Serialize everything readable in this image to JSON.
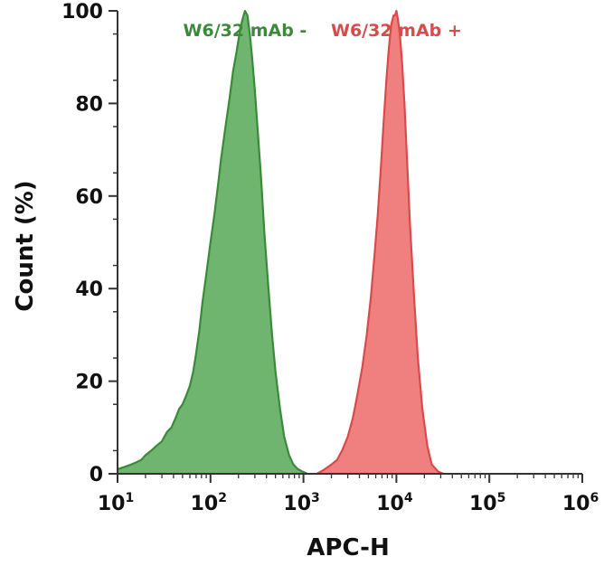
{
  "chart_data": {
    "type": "area",
    "title": "",
    "xlabel": "APC-H",
    "ylabel": "Count (%)",
    "x_scale": "log",
    "xlim": [
      10,
      1000000
    ],
    "ylim": [
      0,
      100
    ],
    "x_ticks": [
      {
        "value": 10,
        "base": "10",
        "exp": "1"
      },
      {
        "value": 100,
        "base": "10",
        "exp": "2"
      },
      {
        "value": 1000,
        "base": "10",
        "exp": "3"
      },
      {
        "value": 10000,
        "base": "10",
        "exp": "4"
      },
      {
        "value": 100000,
        "base": "10",
        "exp": "5"
      },
      {
        "value": 1000000,
        "base": "10",
        "exp": "6"
      }
    ],
    "y_ticks": [
      "0",
      "20",
      "40",
      "60",
      "80",
      "100"
    ],
    "grid": false,
    "series": [
      {
        "name": "W6/32 mAb -",
        "color": "#3a8a3a",
        "fill": "#6fb56f",
        "x": [
          10,
          12,
          14,
          16,
          18,
          20,
          23,
          26,
          30,
          34,
          38,
          42,
          46,
          50,
          55,
          60,
          65,
          70,
          76,
          82,
          90,
          100,
          110,
          120,
          130,
          145,
          160,
          175,
          190,
          205,
          220,
          235,
          250,
          265,
          280,
          300,
          320,
          350,
          380,
          420,
          460,
          500,
          560,
          620,
          700,
          780,
          870,
          970,
          1100
        ],
        "y": [
          1,
          1.5,
          2,
          2.5,
          3,
          4,
          5,
          6,
          7,
          9,
          10,
          12,
          14,
          15,
          17,
          19,
          22,
          26,
          31,
          37,
          43,
          50,
          56,
          62,
          68,
          75,
          81,
          87,
          91,
          95,
          98,
          100,
          99,
          95,
          90,
          83,
          75,
          64,
          52,
          40,
          30,
          22,
          14,
          8,
          4,
          2,
          1,
          0.5,
          0
        ]
      },
      {
        "name": "W6/32 mAb +",
        "color": "#d94a4a",
        "fill": "#f08080",
        "x": [
          1400,
          1700,
          2000,
          2300,
          2600,
          3000,
          3400,
          3800,
          4300,
          4800,
          5300,
          5800,
          6300,
          6800,
          7300,
          7800,
          8300,
          8800,
          9300,
          9700,
          10000,
          10400,
          10900,
          11500,
          12200,
          13000,
          14000,
          15500,
          17000,
          19000,
          21500,
          24000,
          28000,
          32000
        ],
        "y": [
          0,
          1,
          2,
          3,
          5,
          8,
          12,
          17,
          23,
          30,
          38,
          47,
          56,
          66,
          76,
          85,
          92,
          97,
          99,
          99,
          100,
          98,
          95,
          89,
          80,
          68,
          54,
          38,
          25,
          14,
          6,
          2,
          0.5,
          0
        ]
      }
    ]
  }
}
